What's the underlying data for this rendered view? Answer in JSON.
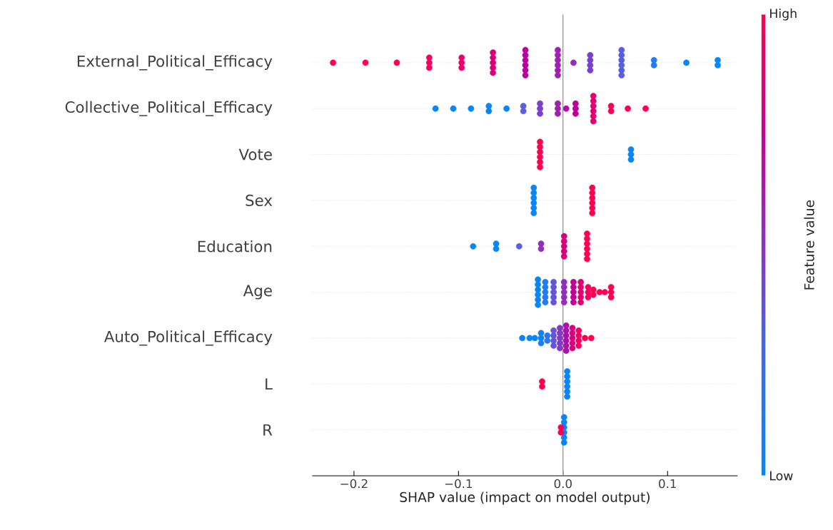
{
  "chart_data": {
    "type": "scatter",
    "orientation": "horizontal",
    "categories": [
      "External_Political_Efficacy",
      "Collective_Political_Efficacy",
      "Vote",
      "Sex",
      "Education",
      "Age",
      "Auto_Political_Efficacy",
      "L",
      "R"
    ],
    "xlabel": "SHAP value (impact on model output)",
    "clabel": "Feature value",
    "clim": [
      0,
      1
    ],
    "cticks": [
      {
        "value": 0,
        "label": "Low"
      },
      {
        "value": 1,
        "label": "High"
      }
    ],
    "xlim": [
      -0.24,
      0.167
    ],
    "xticks": [
      {
        "value": -0.2,
        "label": "−0.2"
      },
      {
        "value": -0.1,
        "label": "−0.1"
      },
      {
        "value": 0,
        "label": "0.0"
      },
      {
        "value": 0.1,
        "label": "0.1"
      }
    ],
    "grid": "y",
    "marker": "circle",
    "ref_lines": [
      {
        "axis": "x",
        "value": 0,
        "color": "#999999"
      }
    ],
    "series": [
      {
        "x": [
          "External_Political_Efficacy",
          "External_Political_Efficacy",
          "External_Political_Efficacy",
          "External_Political_Efficacy",
          "External_Political_Efficacy",
          "External_Political_Efficacy",
          "External_Political_Efficacy",
          "External_Political_Efficacy",
          "External_Political_Efficacy",
          "External_Political_Efficacy",
          "External_Political_Efficacy",
          "External_Political_Efficacy",
          "External_Political_Efficacy",
          "External_Political_Efficacy",
          "External_Political_Efficacy",
          "External_Political_Efficacy",
          "External_Political_Efficacy",
          "External_Political_Efficacy",
          "External_Political_Efficacy",
          "External_Political_Efficacy",
          "External_Political_Efficacy",
          "External_Political_Efficacy",
          "External_Political_Efficacy",
          "External_Political_Efficacy",
          "External_Political_Efficacy",
          "External_Political_Efficacy",
          "External_Political_Efficacy",
          "External_Political_Efficacy",
          "External_Political_Efficacy",
          "External_Political_Efficacy",
          "External_Political_Efficacy",
          "External_Political_Efficacy",
          "External_Political_Efficacy",
          "External_Political_Efficacy",
          "External_Political_Efficacy",
          "External_Political_Efficacy",
          "External_Political_Efficacy",
          "External_Political_Efficacy",
          "External_Political_Efficacy",
          "External_Political_Efficacy",
          "External_Political_Efficacy",
          "External_Political_Efficacy"
        ],
        "values": [
          -0.22,
          -0.189,
          -0.159,
          -0.128,
          -0.128,
          -0.128,
          -0.097,
          -0.097,
          -0.097,
          -0.067,
          -0.067,
          -0.067,
          -0.067,
          -0.067,
          -0.036,
          -0.036,
          -0.036,
          -0.036,
          -0.036,
          -0.036,
          -0.005,
          -0.005,
          -0.005,
          -0.005,
          -0.005,
          -0.005,
          0.01,
          0.026,
          0.026,
          0.026,
          0.026,
          0.056,
          0.056,
          0.056,
          0.056,
          0.056,
          0.056,
          0.087,
          0.087,
          0.118,
          0.148,
          0.148
        ],
        "colors": [
          "#ff0051",
          "#ff0051",
          "#ff0051",
          "#f5005e",
          "#f5005e",
          "#f5005e",
          "#ea0068",
          "#ea0068",
          "#ea0068",
          "#d6007d",
          "#d6007d",
          "#d6007d",
          "#d6007d",
          "#d6007d",
          "#b800a0",
          "#b800a0",
          "#b800a0",
          "#b800a0",
          "#b800a0",
          "#b800a0",
          "#a020b2",
          "#a020b2",
          "#a020b2",
          "#a020b2",
          "#a020b2",
          "#a020b2",
          "#9030ba",
          "#7a40cc",
          "#7a40cc",
          "#7a40cc",
          "#7a40cc",
          "#5a5ede",
          "#5a5ede",
          "#5a5ede",
          "#5a5ede",
          "#5a5ede",
          "#5a5ede",
          "#207cef",
          "#207cef",
          "#0a85f6",
          "#0489f9",
          "#0489f9"
        ]
      },
      {
        "x": [
          "Collective_Political_Efficacy",
          "Collective_Political_Efficacy",
          "Collective_Political_Efficacy",
          "Collective_Political_Efficacy",
          "Collective_Political_Efficacy",
          "Collective_Political_Efficacy",
          "Collective_Political_Efficacy",
          "Collective_Political_Efficacy",
          "Collective_Political_Efficacy",
          "Collective_Political_Efficacy",
          "Collective_Political_Efficacy",
          "Collective_Political_Efficacy",
          "Collective_Political_Efficacy",
          "Collective_Political_Efficacy",
          "Collective_Political_Efficacy",
          "Collective_Political_Efficacy",
          "Collective_Political_Efficacy",
          "Collective_Political_Efficacy",
          "Collective_Political_Efficacy",
          "Collective_Political_Efficacy",
          "Collective_Political_Efficacy",
          "Collective_Political_Efficacy",
          "Collective_Political_Efficacy",
          "Collective_Political_Efficacy",
          "Collective_Political_Efficacy",
          "Collective_Political_Efficacy",
          "Collective_Political_Efficacy",
          "Collective_Political_Efficacy"
        ],
        "values": [
          -0.122,
          -0.105,
          -0.088,
          -0.071,
          -0.071,
          -0.054,
          -0.038,
          -0.038,
          -0.022,
          -0.022,
          -0.022,
          -0.005,
          -0.005,
          -0.005,
          0.003,
          0.012,
          0.012,
          0.012,
          0.029,
          0.029,
          0.029,
          0.029,
          0.029,
          0.029,
          0.046,
          0.046,
          0.062,
          0.079
        ],
        "colors": [
          "#0a85f6",
          "#0a85f6",
          "#0a85f6",
          "#0a85f6",
          "#0a85f6",
          "#0a85f6",
          "#5a5ede",
          "#5a5ede",
          "#7a40cc",
          "#7a40cc",
          "#7a40cc",
          "#a020b2",
          "#a020b2",
          "#a020b2",
          "#ad10aa",
          "#c00095",
          "#c00095",
          "#c00095",
          "#e00072",
          "#e00072",
          "#e00072",
          "#e00072",
          "#e00072",
          "#e00072",
          "#fa0058",
          "#fa0058",
          "#fa0058",
          "#fa0058"
        ]
      },
      {
        "x": [
          "Vote",
          "Vote",
          "Vote",
          "Vote",
          "Vote",
          "Vote",
          "Vote",
          "Vote",
          "Vote"
        ],
        "values": [
          -0.022,
          -0.022,
          -0.022,
          -0.022,
          -0.022,
          -0.022,
          0.065,
          0.065,
          0.065
        ],
        "colors": [
          "#ff0051",
          "#ff0051",
          "#ff0051",
          "#ff0051",
          "#ff0051",
          "#ff0051",
          "#0a85f6",
          "#0a85f6",
          "#0a85f6"
        ]
      },
      {
        "x": [
          "Sex",
          "Sex",
          "Sex",
          "Sex",
          "Sex",
          "Sex",
          "Sex",
          "Sex",
          "Sex",
          "Sex",
          "Sex",
          "Sex"
        ],
        "values": [
          -0.028,
          -0.028,
          -0.028,
          -0.028,
          -0.028,
          -0.028,
          0.028,
          0.028,
          0.028,
          0.028,
          0.028,
          0.028
        ],
        "colors": [
          "#0a85f6",
          "#0a85f6",
          "#0a85f6",
          "#0a85f6",
          "#0a85f6",
          "#0a85f6",
          "#ff0051",
          "#ff0051",
          "#ff0051",
          "#ff0051",
          "#ff0051",
          "#ff0051"
        ]
      },
      {
        "x": [
          "Education",
          "Education",
          "Education",
          "Education",
          "Education",
          "Education",
          "Education",
          "Education",
          "Education",
          "Education",
          "Education",
          "Education",
          "Education",
          "Education",
          "Education",
          "Education",
          "Education"
        ],
        "values": [
          -0.086,
          -0.064,
          -0.064,
          -0.042,
          -0.021,
          -0.021,
          0.001,
          0.001,
          0.001,
          0.001,
          0.001,
          0.023,
          0.023,
          0.023,
          0.023,
          0.023,
          0.023
        ],
        "colors": [
          "#0a85f6",
          "#0a85f6",
          "#0a85f6",
          "#5a5ede",
          "#9030ba",
          "#9030ba",
          "#d6007d",
          "#d6007d",
          "#d6007d",
          "#d6007d",
          "#d6007d",
          "#ff0051",
          "#ff0051",
          "#ff0051",
          "#ff0051",
          "#ff0051",
          "#ff0051"
        ]
      },
      {
        "x": [
          "Age",
          "Age",
          "Age",
          "Age",
          "Age",
          "Age",
          "Age",
          "Age",
          "Age",
          "Age",
          "Age",
          "Age",
          "Age",
          "Age",
          "Age",
          "Age",
          "Age",
          "Age",
          "Age",
          "Age",
          "Age",
          "Age",
          "Age",
          "Age",
          "Age",
          "Age",
          "Age",
          "Age",
          "Age",
          "Age",
          "Age",
          "Age",
          "Age",
          "Age",
          "Age",
          "Age",
          "Age",
          "Age",
          "Age",
          "Age",
          "Age"
        ],
        "values": [
          -0.024,
          -0.024,
          -0.024,
          -0.024,
          -0.024,
          -0.024,
          -0.017,
          -0.017,
          -0.017,
          -0.017,
          -0.017,
          -0.009,
          -0.009,
          -0.009,
          -0.009,
          -0.009,
          0.001,
          0.001,
          0.001,
          0.001,
          0.001,
          0.01,
          0.01,
          0.01,
          0.01,
          0.01,
          0.017,
          0.017,
          0.017,
          0.017,
          0.017,
          0.024,
          0.024,
          0.024,
          0.029,
          0.029,
          0.035,
          0.04,
          0.046,
          0.046,
          0.046
        ],
        "colors": [
          "#0a85f6",
          "#0a85f6",
          "#0a85f6",
          "#0a85f6",
          "#0a85f6",
          "#0a85f6",
          "#207cef",
          "#207cef",
          "#207cef",
          "#207cef",
          "#207cef",
          "#6455d8",
          "#6455d8",
          "#6455d8",
          "#6455d8",
          "#6455d8",
          "#9030ba",
          "#9030ba",
          "#9030ba",
          "#9030ba",
          "#9030ba",
          "#c00095",
          "#c00095",
          "#c00095",
          "#c00095",
          "#c00095",
          "#e00072",
          "#e00072",
          "#e00072",
          "#e00072",
          "#e00072",
          "#f5005e",
          "#f5005e",
          "#f5005e",
          "#ff0051",
          "#ff0051",
          "#ff0051",
          "#ff0051",
          "#ff0051",
          "#ff0051",
          "#ff0051"
        ]
      },
      {
        "x": [
          "Auto_Political_Efficacy",
          "Auto_Political_Efficacy",
          "Auto_Political_Efficacy",
          "Auto_Political_Efficacy",
          "Auto_Political_Efficacy",
          "Auto_Political_Efficacy",
          "Auto_Political_Efficacy",
          "Auto_Political_Efficacy",
          "Auto_Political_Efficacy",
          "Auto_Political_Efficacy",
          "Auto_Political_Efficacy",
          "Auto_Political_Efficacy",
          "Auto_Political_Efficacy",
          "Auto_Political_Efficacy",
          "Auto_Political_Efficacy",
          "Auto_Political_Efficacy",
          "Auto_Political_Efficacy",
          "Auto_Political_Efficacy",
          "Auto_Political_Efficacy",
          "Auto_Political_Efficacy",
          "Auto_Political_Efficacy",
          "Auto_Political_Efficacy",
          "Auto_Political_Efficacy",
          "Auto_Political_Efficacy",
          "Auto_Political_Efficacy",
          "Auto_Political_Efficacy",
          "Auto_Political_Efficacy",
          "Auto_Political_Efficacy",
          "Auto_Political_Efficacy",
          "Auto_Political_Efficacy",
          "Auto_Political_Efficacy",
          "Auto_Political_Efficacy",
          "Auto_Political_Efficacy",
          "Auto_Political_Efficacy"
        ],
        "values": [
          -0.039,
          -0.032,
          -0.027,
          -0.021,
          -0.021,
          -0.021,
          -0.015,
          -0.015,
          -0.009,
          -0.009,
          -0.009,
          -0.009,
          -0.003,
          -0.003,
          -0.003,
          -0.003,
          -0.003,
          0.003,
          0.003,
          0.003,
          0.003,
          0.003,
          0.003,
          0.009,
          0.009,
          0.009,
          0.009,
          0.009,
          0.015,
          0.015,
          0.015,
          0.015,
          0.021,
          0.027
        ],
        "colors": [
          "#0a85f6",
          "#0a85f6",
          "#0a85f6",
          "#187ff2",
          "#187ff2",
          "#187ff2",
          "#2a78ec",
          "#2a78ec",
          "#6455d8",
          "#6455d8",
          "#6455d8",
          "#6455d8",
          "#8438c4",
          "#8438c4",
          "#8438c4",
          "#8438c4",
          "#8438c4",
          "#ad10aa",
          "#ad10aa",
          "#ad10aa",
          "#ad10aa",
          "#ad10aa",
          "#ad10aa",
          "#d6007d",
          "#d6007d",
          "#d6007d",
          "#d6007d",
          "#d6007d",
          "#f5005e",
          "#f5005e",
          "#f5005e",
          "#f5005e",
          "#ff0051",
          "#ff0051"
        ]
      },
      {
        "x": [
          "L",
          "L",
          "L",
          "L",
          "L",
          "L",
          "L",
          "L"
        ],
        "values": [
          -0.02,
          -0.02,
          0.004,
          0.004,
          0.004,
          0.004,
          0.004,
          0.004
        ],
        "colors": [
          "#ff0051",
          "#ff0051",
          "#0a85f6",
          "#0a85f6",
          "#0a85f6",
          "#0a85f6",
          "#0a85f6",
          "#0a85f6"
        ]
      },
      {
        "x": [
          "R",
          "R",
          "R",
          "R",
          "R",
          "R",
          "R",
          "R"
        ],
        "values": [
          0.001,
          0.001,
          0.001,
          0.001,
          0.001,
          0.001,
          -0.002,
          -0.002
        ],
        "colors": [
          "#0a85f6",
          "#0a85f6",
          "#0a85f6",
          "#0a85f6",
          "#0a85f6",
          "#0a85f6",
          "#ff0051",
          "#ff0051"
        ]
      }
    ]
  }
}
